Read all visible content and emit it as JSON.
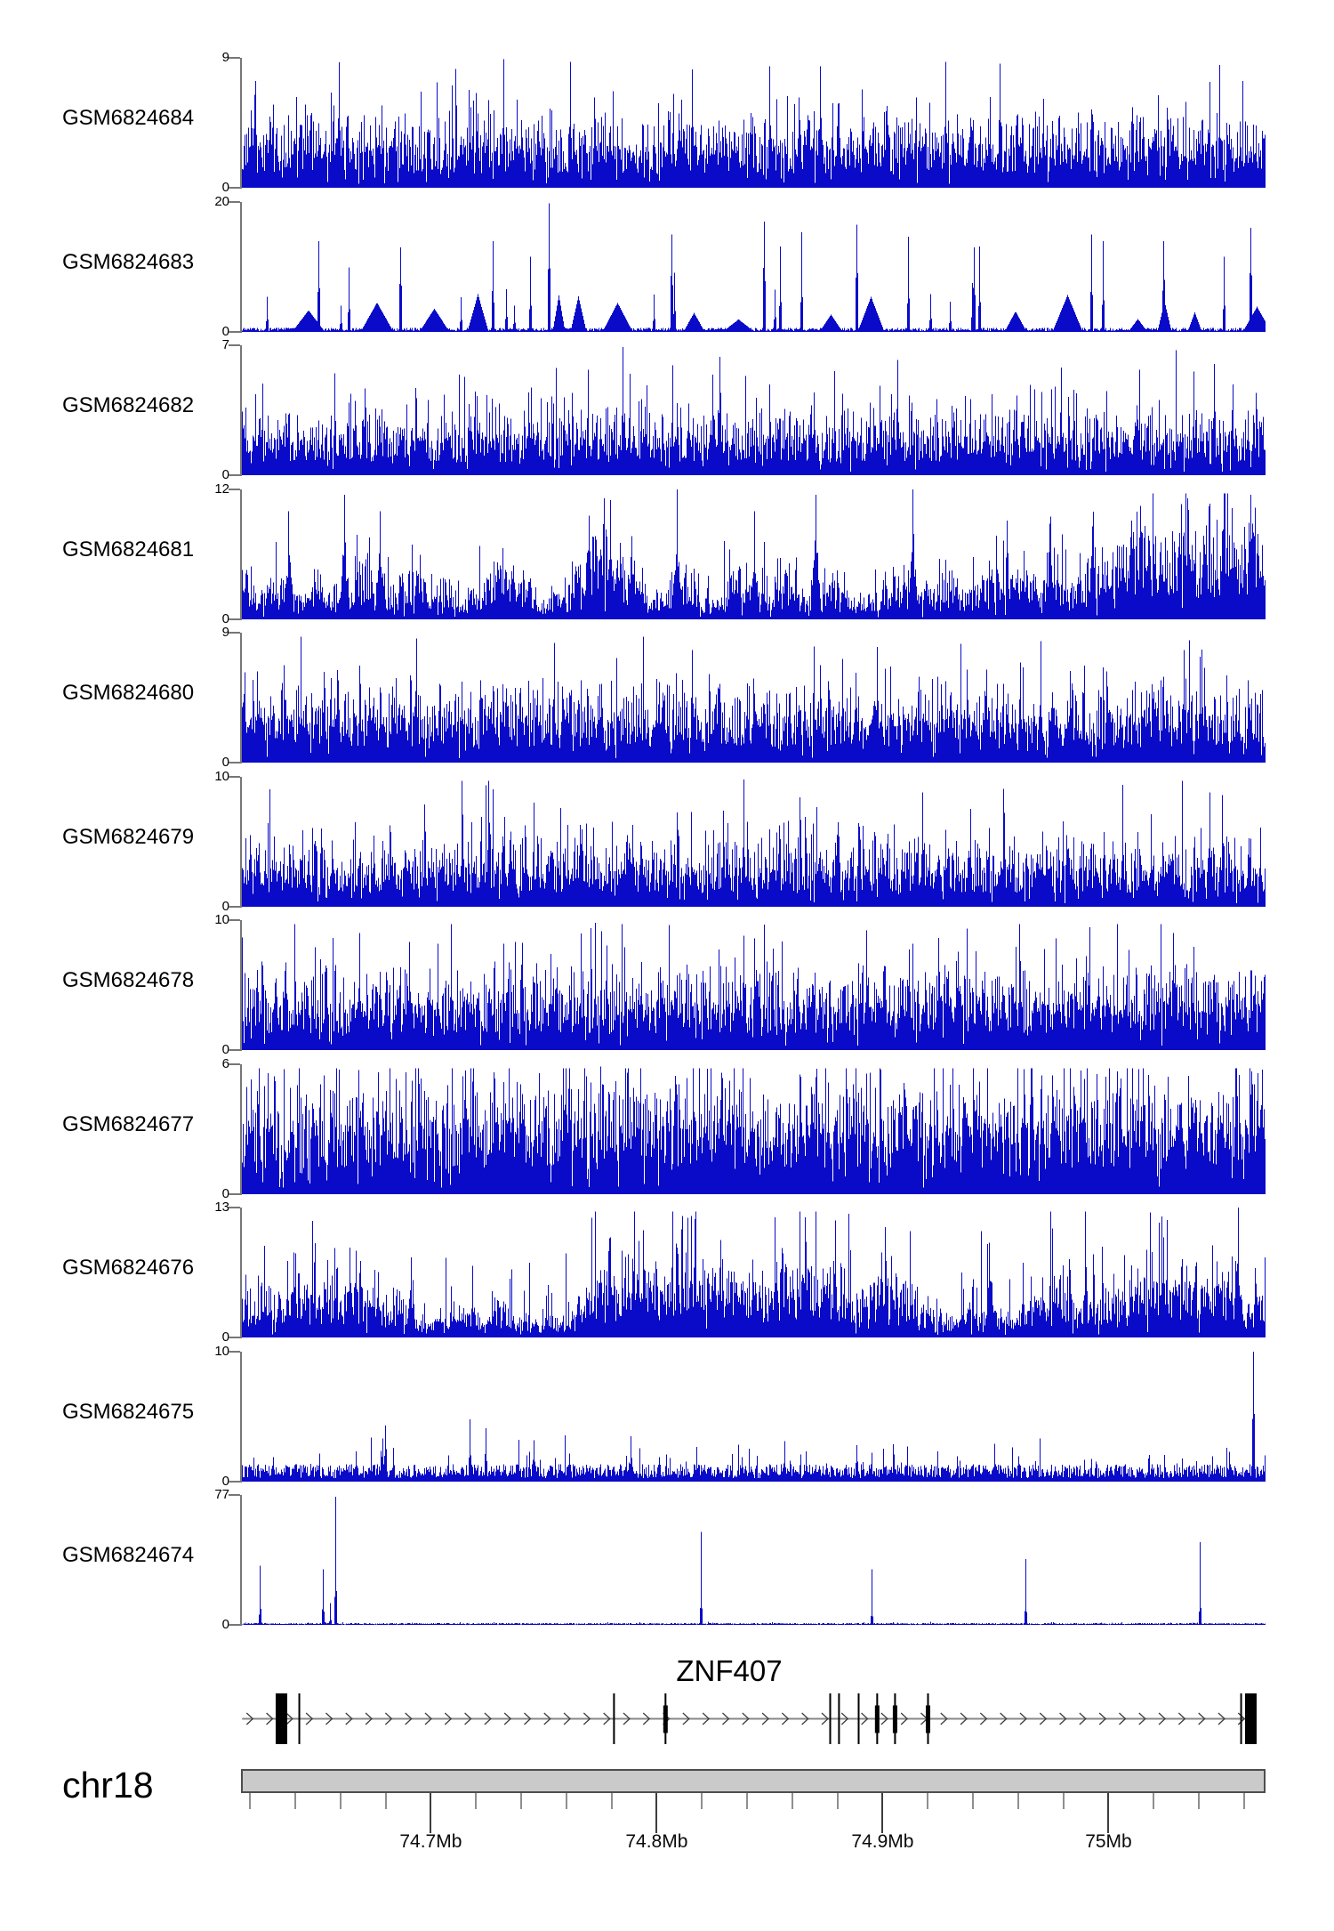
{
  "chart_data": {
    "type": "area",
    "description": "Genome browser coverage tracks (read pileups) for 11 GEO samples over the ZNF407 locus on chr18",
    "signal_color": "#0a0ac9",
    "tracks": [
      {
        "name": "GSM6824684",
        "ymax": 9,
        "ymin": 0,
        "style": "dense",
        "base": 2.0,
        "peaks": [
          {
            "x": 0.095,
            "h": 8.7
          },
          {
            "x": 0.255,
            "h": 8.9
          },
          {
            "x": 0.44,
            "h": 8.2
          },
          {
            "x": 0.565,
            "h": 8.4
          },
          {
            "x": 0.74,
            "h": 8.6
          },
          {
            "x": 0.955,
            "h": 8.5
          }
        ]
      },
      {
        "name": "GSM6824683",
        "ymax": 20,
        "ymin": 0,
        "style": "tri",
        "base": 0.5,
        "peaks": [
          {
            "x": 0.075,
            "h": 14
          },
          {
            "x": 0.155,
            "h": 13
          },
          {
            "x": 0.245,
            "h": 14
          },
          {
            "x": 0.3,
            "h": 19.8
          },
          {
            "x": 0.42,
            "h": 15
          },
          {
            "x": 0.51,
            "h": 17
          },
          {
            "x": 0.6,
            "h": 16.5
          },
          {
            "x": 0.715,
            "h": 13
          },
          {
            "x": 0.83,
            "h": 15
          },
          {
            "x": 0.9,
            "h": 14
          },
          {
            "x": 0.985,
            "h": 16
          }
        ]
      },
      {
        "name": "GSM6824682",
        "ymax": 7,
        "ymin": 0,
        "style": "dense",
        "base": 1.4,
        "peaks": [
          {
            "x": 0.09,
            "h": 5.5
          },
          {
            "x": 0.372,
            "h": 6.9
          },
          {
            "x": 0.64,
            "h": 6.2
          },
          {
            "x": 0.8,
            "h": 5.8
          },
          {
            "x": 0.95,
            "h": 6.0
          }
        ]
      },
      {
        "name": "GSM6824681",
        "ymax": 12,
        "ymin": 0,
        "style": "bursty",
        "base": 2.6,
        "peaks": [
          {
            "x": 0.045,
            "h": 10
          },
          {
            "x": 0.1,
            "h": 11.5
          },
          {
            "x": 0.135,
            "h": 10
          },
          {
            "x": 0.36,
            "h": 11
          },
          {
            "x": 0.425,
            "h": 12
          },
          {
            "x": 0.5,
            "h": 10
          },
          {
            "x": 0.56,
            "h": 11.5
          },
          {
            "x": 0.655,
            "h": 12
          },
          {
            "x": 0.79,
            "h": 9.5
          },
          {
            "x": 0.985,
            "h": 11.5
          }
        ]
      },
      {
        "name": "GSM6824680",
        "ymax": 9,
        "ymin": 0,
        "style": "dense",
        "base": 2.2,
        "peaks": [
          {
            "x": 0.17,
            "h": 8.6
          },
          {
            "x": 0.305,
            "h": 8.3
          },
          {
            "x": 0.44,
            "h": 7.8
          },
          {
            "x": 0.62,
            "h": 8.0
          },
          {
            "x": 0.78,
            "h": 8.4
          },
          {
            "x": 0.92,
            "h": 7.8
          }
        ]
      },
      {
        "name": "GSM6824679",
        "ymax": 10,
        "ymin": 0,
        "style": "dense",
        "base": 2.1,
        "peaks": [
          {
            "x": 0.215,
            "h": 9.3
          },
          {
            "x": 0.49,
            "h": 9.8
          },
          {
            "x": 0.665,
            "h": 8.8
          },
          {
            "x": 0.86,
            "h": 9.4
          },
          {
            "x": 0.945,
            "h": 8.8
          }
        ]
      },
      {
        "name": "GSM6824678",
        "ymax": 10,
        "ymin": 0,
        "style": "dense",
        "base": 2.6,
        "peaks": [
          {
            "x": 0.115,
            "h": 9.0
          },
          {
            "x": 0.345,
            "h": 9.8
          },
          {
            "x": 0.5,
            "h": 8.6
          },
          {
            "x": 0.61,
            "h": 9.2
          },
          {
            "x": 0.795,
            "h": 8.6
          },
          {
            "x": 0.91,
            "h": 9.0
          }
        ]
      },
      {
        "name": "GSM6824677",
        "ymax": 6,
        "ymin": 0,
        "style": "dense",
        "base": 2.3,
        "peaks": [
          {
            "x": 0.225,
            "h": 5.2
          },
          {
            "x": 0.35,
            "h": 5.9
          },
          {
            "x": 0.56,
            "h": 5.4
          },
          {
            "x": 0.72,
            "h": 5.2
          },
          {
            "x": 0.885,
            "h": 5.5
          }
        ]
      },
      {
        "name": "GSM6824676",
        "ymax": 13,
        "ymin": 0,
        "style": "bursty",
        "base": 2.3,
        "peaks": [
          {
            "x": 0.05,
            "h": 8.5
          },
          {
            "x": 0.105,
            "h": 9
          },
          {
            "x": 0.165,
            "h": 8
          },
          {
            "x": 0.36,
            "h": 10
          },
          {
            "x": 0.425,
            "h": 9
          },
          {
            "x": 0.55,
            "h": 12
          },
          {
            "x": 0.625,
            "h": 8.5
          },
          {
            "x": 0.73,
            "h": 9.5
          },
          {
            "x": 0.973,
            "h": 13
          }
        ]
      },
      {
        "name": "GSM6824675",
        "ymax": 10,
        "ymin": 0,
        "style": "low",
        "base": 0.9,
        "peaks": [
          {
            "x": 0.14,
            "h": 4.3
          },
          {
            "x": 0.222,
            "h": 4.8
          },
          {
            "x": 0.238,
            "h": 4.1
          },
          {
            "x": 0.285,
            "h": 3.2
          },
          {
            "x": 0.38,
            "h": 3.5
          },
          {
            "x": 0.53,
            "h": 3.1
          },
          {
            "x": 0.6,
            "h": 2.8
          },
          {
            "x": 0.735,
            "h": 2.9
          },
          {
            "x": 0.988,
            "h": 10
          }
        ]
      },
      {
        "name": "GSM6824674",
        "ymax": 77,
        "ymin": 0,
        "style": "flat",
        "base": 0.8,
        "peaks": [
          {
            "x": 0.017,
            "h": 35
          },
          {
            "x": 0.079,
            "h": 33
          },
          {
            "x": 0.086,
            "h": 13
          },
          {
            "x": 0.091,
            "h": 76
          },
          {
            "x": 0.448,
            "h": 55
          },
          {
            "x": 0.615,
            "h": 33
          },
          {
            "x": 0.765,
            "h": 39
          },
          {
            "x": 0.936,
            "h": 49
          }
        ]
      }
    ],
    "gene_track": {
      "label": "ZNF407",
      "strand": "+",
      "gene_start_mb": 74.6165,
      "gene_end_mb": 75.0645,
      "exons": [
        {
          "mb": 74.6339,
          "type": "box",
          "w_mb": 0.0051
        },
        {
          "mb": 74.6418,
          "type": "line"
        },
        {
          "mb": 74.7811,
          "type": "line"
        },
        {
          "mb": 74.8039,
          "type": "line+cds"
        },
        {
          "mb": 74.8768,
          "type": "line"
        },
        {
          "mb": 74.8807,
          "type": "line"
        },
        {
          "mb": 74.8894,
          "type": "line"
        },
        {
          "mb": 74.8976,
          "type": "line+cds"
        },
        {
          "mb": 74.9055,
          "type": "line+cds"
        },
        {
          "mb": 74.9201,
          "type": "line+cds"
        },
        {
          "mb": 75.0587,
          "type": "line"
        },
        {
          "mb": 75.063,
          "type": "box",
          "w_mb": 0.0051
        }
      ]
    },
    "axis": {
      "chrom_label": "chr18",
      "start_mb": 74.616,
      "end_mb": 75.0695,
      "minor_tick_step_mb": 0.02,
      "minor_tick_first_mb": 74.62,
      "minor_tick_last_mb": 75.06,
      "major_ticks": [
        {
          "mb": 74.7,
          "label": "74.7Mb"
        },
        {
          "mb": 74.8,
          "label": "74.8Mb"
        },
        {
          "mb": 74.9,
          "label": "74.9Mb"
        },
        {
          "mb": 75.0,
          "label": "75Mb"
        }
      ]
    },
    "colors": {
      "signal": "#0a0ac9",
      "axis_gray": "#777777",
      "gene_line": "#888888",
      "arrow": "#3c3c3c",
      "exon": "#000000",
      "ruler_fill": "#cacaca",
      "ruler_border": "#4d4d4d",
      "minor_tick": "#8f8f8f",
      "major_tick": "#3d3d3d"
    }
  }
}
